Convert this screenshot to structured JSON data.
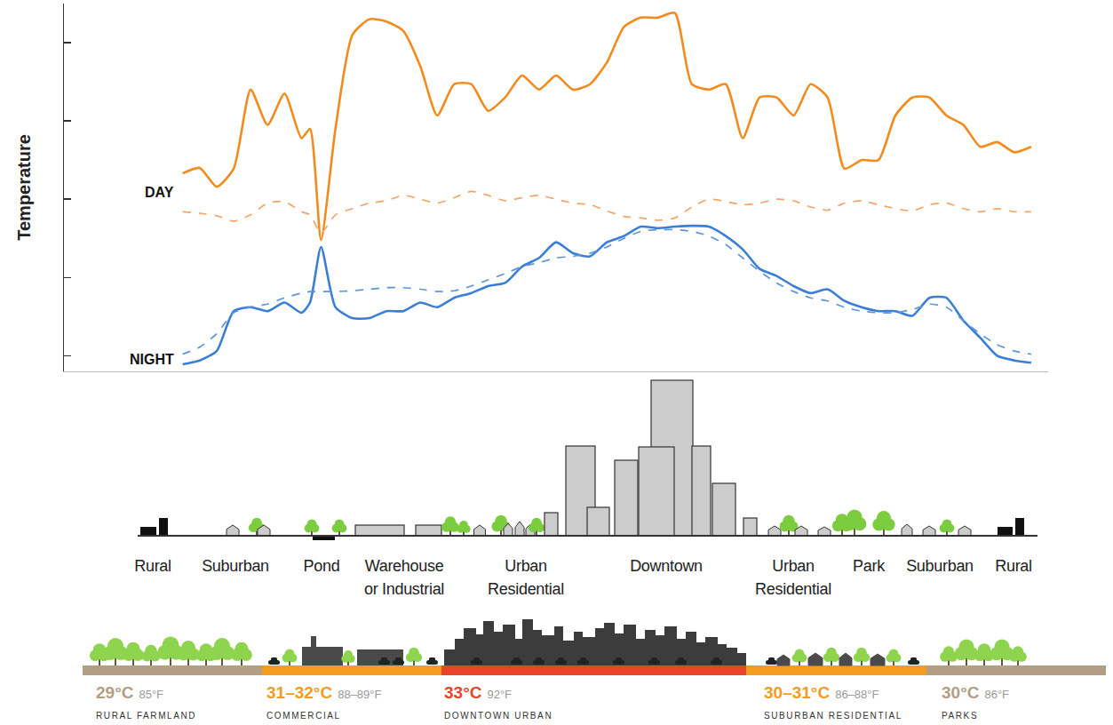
{
  "chart_data": {
    "type": "line",
    "ylabel": "Temperature",
    "annotations": [
      "DAY",
      "NIGHT"
    ],
    "x": [
      0,
      2,
      4,
      6,
      8,
      10,
      12,
      14,
      15,
      16.3,
      18,
      20,
      22,
      24,
      26,
      28,
      30,
      32,
      34,
      36,
      38,
      40,
      42,
      44,
      46,
      48,
      50,
      52,
      54,
      56,
      58,
      60,
      62,
      64,
      66,
      68,
      70,
      72,
      74,
      76,
      78,
      80,
      82,
      84,
      86,
      88,
      90,
      92,
      94,
      96,
      98,
      100
    ],
    "xlim": [
      -14,
      102
    ],
    "xticks": [],
    "ylim": [
      -0.2,
      4.5
    ],
    "yticks": [
      0,
      1,
      2,
      3,
      4
    ],
    "tick_labels": false,
    "grid": false,
    "series": [
      {
        "color": "#f28a1c",
        "line_style": "solid",
        "values": [
          2.33,
          2.4,
          2.16,
          2.39,
          3.4,
          2.95,
          3.35,
          2.78,
          2.9,
          1.48,
          2.9,
          4.1,
          4.3,
          4.27,
          4.15,
          3.7,
          3.07,
          3.47,
          3.47,
          3.13,
          3.3,
          3.58,
          3.4,
          3.58,
          3.4,
          3.47,
          3.75,
          4.2,
          4.32,
          4.32,
          4.38,
          3.47,
          3.4,
          3.47,
          2.78,
          3.3,
          3.3,
          3.07,
          3.47,
          3.3,
          2.39,
          2.5,
          2.5,
          3.07,
          3.3,
          3.3,
          3.07,
          2.95,
          2.67,
          2.73,
          2.6,
          2.67
        ]
      },
      {
        "color": "#f4a466",
        "line_style": "dashed",
        "values": [
          1.84,
          1.82,
          1.79,
          1.72,
          1.8,
          1.95,
          1.97,
          1.84,
          1.8,
          1.57,
          1.8,
          1.88,
          1.95,
          1.98,
          2.05,
          2.0,
          1.95,
          2.02,
          2.1,
          2.05,
          1.98,
          2.02,
          2.05,
          2.0,
          1.95,
          1.93,
          1.85,
          1.78,
          1.76,
          1.73,
          1.76,
          1.9,
          2.0,
          1.97,
          1.93,
          1.95,
          2.0,
          1.98,
          1.9,
          1.86,
          1.95,
          1.98,
          1.93,
          1.88,
          1.85,
          1.93,
          1.95,
          1.88,
          1.84,
          1.88,
          1.84,
          1.84
        ]
      },
      {
        "color": "#3a7fd5",
        "line_style": "solid",
        "values": [
          -0.11,
          -0.06,
          0.06,
          0.57,
          0.62,
          0.57,
          0.68,
          0.55,
          0.68,
          1.39,
          0.62,
          0.48,
          0.48,
          0.57,
          0.57,
          0.68,
          0.62,
          0.74,
          0.8,
          0.89,
          0.93,
          1.14,
          1.25,
          1.45,
          1.31,
          1.27,
          1.45,
          1.53,
          1.65,
          1.63,
          1.65,
          1.66,
          1.65,
          1.53,
          1.36,
          1.11,
          1.02,
          0.89,
          0.8,
          0.85,
          0.7,
          0.62,
          0.57,
          0.57,
          0.51,
          0.74,
          0.74,
          0.45,
          0.23,
          0,
          -0.06,
          -0.09
        ]
      },
      {
        "color": "#5b95dd",
        "line_style": "dashed",
        "values": [
          0.02,
          0.11,
          0.28,
          0.55,
          0.62,
          0.66,
          0.74,
          0.8,
          0.82,
          0.82,
          0.82,
          0.83,
          0.85,
          0.87,
          0.87,
          0.85,
          0.82,
          0.83,
          0.89,
          0.97,
          1.05,
          1.14,
          1.19,
          1.25,
          1.27,
          1.31,
          1.39,
          1.5,
          1.59,
          1.61,
          1.61,
          1.59,
          1.53,
          1.42,
          1.25,
          1.08,
          0.93,
          0.82,
          0.74,
          0.7,
          0.62,
          0.57,
          0.55,
          0.55,
          0.59,
          0.66,
          0.62,
          0.45,
          0.28,
          0.14,
          0.06,
          0.02
        ]
      }
    ]
  },
  "transect": {
    "zones": [
      {
        "label": [
          "Rural"
        ]
      },
      {
        "label": [
          "Suburban"
        ]
      },
      {
        "label": [
          "Pond"
        ]
      },
      {
        "label": [
          "Warehouse",
          "or Industrial"
        ]
      },
      {
        "label": [
          "Urban",
          "Residential"
        ]
      },
      {
        "label": [
          "Downtown"
        ]
      },
      {
        "label": [
          "Urban",
          "Residential"
        ]
      },
      {
        "label": [
          "Park"
        ]
      },
      {
        "label": [
          "Suburban"
        ]
      },
      {
        "label": [
          "Rural"
        ]
      }
    ]
  },
  "temperature_strip": {
    "zones": [
      {
        "celsius": "29°C",
        "fahrenheit": "85°F",
        "name": "RURAL FARMLAND",
        "color": "#b39e84"
      },
      {
        "celsius": "31–32°C",
        "fahrenheit": "88–89°F",
        "name": "COMMERCIAL",
        "color": "#f39c1f"
      },
      {
        "celsius": "33°C",
        "fahrenheit": "92°F",
        "name": "DOWNTOWN URBAN",
        "color": "#e8442a"
      },
      {
        "celsius": "30–31°C",
        "fahrenheit": "86–88°F",
        "name": "SUBURBAN RESIDENTIAL",
        "color": "#f39c1f"
      },
      {
        "celsius": "30°C",
        "fahrenheit": "86°F",
        "name": "PARKS",
        "color": "#b39e84"
      }
    ]
  }
}
